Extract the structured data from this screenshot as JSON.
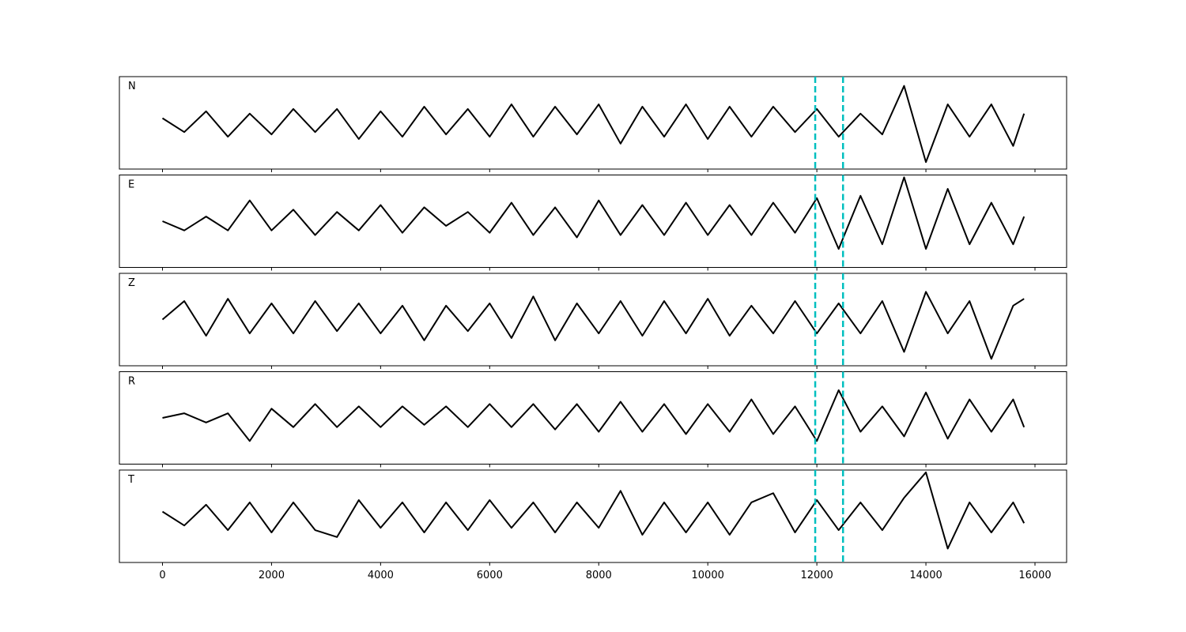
{
  "chart_data": [
    {
      "type": "line",
      "title": "N",
      "color": "#000000",
      "vline_color": "#00bfbf",
      "vlines": [
        11970,
        12480
      ],
      "xlim": [
        -790,
        16580
      ],
      "xticks": [
        0,
        2000,
        4000,
        6000,
        8000,
        10000,
        12000,
        14000,
        16000
      ],
      "ylim": [
        -1,
        1
      ],
      "x": [
        0,
        400,
        800,
        1200,
        1600,
        2000,
        2400,
        2800,
        3200,
        3600,
        4000,
        4400,
        4800,
        5200,
        5600,
        6000,
        6400,
        6800,
        7200,
        7600,
        8000,
        8400,
        8800,
        9200,
        9600,
        10000,
        10400,
        10800,
        11200,
        11600,
        12000,
        12400,
        12800,
        13200,
        13600,
        14000,
        14400,
        14800,
        15200,
        15600,
        15800
      ],
      "values": [
        0.1,
        -0.2,
        0.25,
        -0.3,
        0.2,
        -0.25,
        0.3,
        -0.2,
        0.3,
        -0.35,
        0.25,
        -0.3,
        0.35,
        -0.25,
        0.3,
        -0.3,
        0.4,
        -0.3,
        0.35,
        -0.25,
        0.4,
        -0.45,
        0.35,
        -0.3,
        0.4,
        -0.35,
        0.35,
        -0.3,
        0.35,
        -0.2,
        0.3,
        -0.3,
        0.2,
        -0.25,
        0.8,
        -0.85,
        0.4,
        -0.3,
        0.4,
        -0.5,
        0.2
      ]
    },
    {
      "type": "line",
      "title": "E",
      "color": "#000000",
      "vline_color": "#00bfbf",
      "vlines": [
        11970,
        12480
      ],
      "xlim": [
        -790,
        16580
      ],
      "xticks": [
        0,
        2000,
        4000,
        6000,
        8000,
        10000,
        12000,
        14000,
        16000
      ],
      "ylim": [
        -1,
        1
      ],
      "x": [
        0,
        400,
        800,
        1200,
        1600,
        2000,
        2400,
        2800,
        3200,
        3600,
        4000,
        4400,
        4800,
        5200,
        5600,
        6000,
        6400,
        6800,
        7200,
        7600,
        8000,
        8400,
        8800,
        9200,
        9600,
        10000,
        10400,
        10800,
        11200,
        11600,
        12000,
        12400,
        12800,
        13200,
        13600,
        14000,
        14400,
        14800,
        15200,
        15600,
        15800
      ],
      "values": [
        0.0,
        -0.2,
        0.1,
        -0.2,
        0.45,
        -0.2,
        0.25,
        -0.3,
        0.2,
        -0.2,
        0.35,
        -0.25,
        0.3,
        -0.1,
        0.2,
        -0.25,
        0.4,
        -0.3,
        0.3,
        -0.35,
        0.45,
        -0.3,
        0.35,
        -0.3,
        0.4,
        -0.3,
        0.35,
        -0.3,
        0.4,
        -0.25,
        0.5,
        -0.6,
        0.55,
        -0.5,
        0.95,
        -0.6,
        0.7,
        -0.5,
        0.4,
        -0.5,
        0.1
      ]
    },
    {
      "type": "line",
      "title": "Z",
      "color": "#000000",
      "vline_color": "#00bfbf",
      "vlines": [
        11970,
        12480
      ],
      "xlim": [
        -790,
        16580
      ],
      "xticks": [
        0,
        2000,
        4000,
        6000,
        8000,
        10000,
        12000,
        14000,
        16000
      ],
      "ylim": [
        -1,
        1
      ],
      "x": [
        0,
        400,
        800,
        1200,
        1600,
        2000,
        2400,
        2800,
        3200,
        3600,
        4000,
        4400,
        4800,
        5200,
        5600,
        6000,
        6400,
        6800,
        7200,
        7600,
        8000,
        8400,
        8800,
        9200,
        9600,
        10000,
        10400,
        10800,
        11200,
        11600,
        12000,
        12400,
        12800,
        13200,
        13600,
        14000,
        14400,
        14800,
        15200,
        15600,
        15800
      ],
      "values": [
        0.0,
        0.4,
        -0.35,
        0.45,
        -0.3,
        0.35,
        -0.3,
        0.4,
        -0.25,
        0.35,
        -0.3,
        0.3,
        -0.45,
        0.3,
        -0.25,
        0.35,
        -0.4,
        0.5,
        -0.45,
        0.35,
        -0.3,
        0.4,
        -0.35,
        0.4,
        -0.3,
        0.45,
        -0.35,
        0.3,
        -0.3,
        0.4,
        -0.3,
        0.35,
        -0.3,
        0.4,
        -0.7,
        0.6,
        -0.3,
        0.4,
        -0.85,
        0.3,
        0.45
      ]
    },
    {
      "type": "line",
      "title": "R",
      "color": "#000000",
      "vline_color": "#00bfbf",
      "vlines": [
        11970,
        12480
      ],
      "xlim": [
        -790,
        16580
      ],
      "xticks": [
        0,
        2000,
        4000,
        6000,
        8000,
        10000,
        12000,
        14000,
        16000
      ],
      "ylim": [
        -1,
        1
      ],
      "x": [
        0,
        400,
        800,
        1200,
        1600,
        2000,
        2400,
        2800,
        3200,
        3600,
        4000,
        4400,
        4800,
        5200,
        5600,
        6000,
        6400,
        6800,
        7200,
        7600,
        8000,
        8400,
        8800,
        9200,
        9600,
        10000,
        10400,
        10800,
        11200,
        11600,
        12000,
        12400,
        12800,
        13200,
        13600,
        14000,
        14400,
        14800,
        15200,
        15600,
        15800
      ],
      "values": [
        0.0,
        0.1,
        -0.1,
        0.1,
        -0.5,
        0.2,
        -0.2,
        0.3,
        -0.2,
        0.25,
        -0.2,
        0.25,
        -0.15,
        0.25,
        -0.2,
        0.3,
        -0.2,
        0.3,
        -0.25,
        0.3,
        -0.3,
        0.35,
        -0.3,
        0.3,
        -0.35,
        0.3,
        -0.3,
        0.4,
        -0.35,
        0.25,
        -0.5,
        0.6,
        -0.3,
        0.25,
        -0.4,
        0.55,
        -0.45,
        0.4,
        -0.3,
        0.4,
        -0.2
      ]
    },
    {
      "type": "line",
      "title": "T",
      "color": "#000000",
      "vline_color": "#00bfbf",
      "vlines": [
        11970,
        12480
      ],
      "xlim": [
        -790,
        16580
      ],
      "xticks": [
        0,
        2000,
        4000,
        6000,
        8000,
        10000,
        12000,
        14000,
        16000
      ],
      "ylim": [
        -1,
        1
      ],
      "x": [
        0,
        400,
        800,
        1200,
        1600,
        2000,
        2400,
        2800,
        3200,
        3600,
        4000,
        4400,
        4800,
        5200,
        5600,
        6000,
        6400,
        6800,
        7200,
        7600,
        8000,
        8400,
        8800,
        9200,
        9600,
        10000,
        10400,
        10800,
        11200,
        11600,
        12000,
        12400,
        12800,
        13200,
        13600,
        14000,
        14400,
        14800,
        15200,
        15600,
        15800
      ],
      "values": [
        0.1,
        -0.2,
        0.25,
        -0.3,
        0.3,
        -0.35,
        0.3,
        -0.3,
        -0.45,
        0.35,
        -0.25,
        0.3,
        -0.35,
        0.3,
        -0.3,
        0.35,
        -0.25,
        0.3,
        -0.35,
        0.3,
        -0.25,
        0.55,
        -0.4,
        0.3,
        -0.35,
        0.3,
        -0.4,
        0.3,
        0.5,
        -0.35,
        0.35,
        -0.3,
        0.3,
        -0.3,
        0.4,
        0.95,
        -0.7,
        0.3,
        -0.35,
        0.3,
        -0.15
      ]
    }
  ]
}
